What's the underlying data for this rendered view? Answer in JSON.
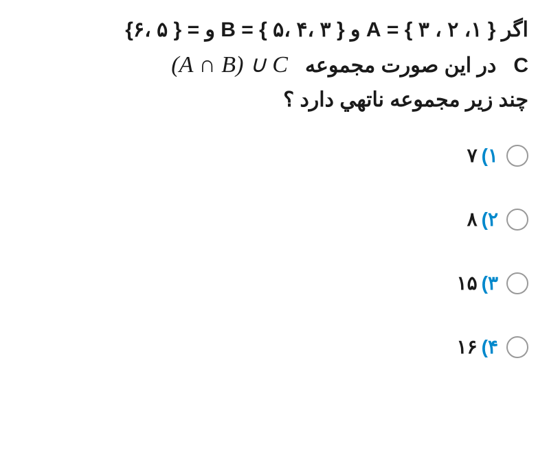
{
  "question": {
    "line1_prefix": "اگر",
    "setA_label": "A",
    "setA_value": "{ ۱، ۲ ، ۳ }",
    "and1": "و",
    "setB_label": "B",
    "setB_value": "{ ۳ ،۴ ،۵ }",
    "and2": "و",
    "setC_prefix": "= { ۵ ،۶}",
    "setC_label": "C",
    "line2_text": "در این صورت مجموعه",
    "math_expr": "(A ∩ B) ∪ C",
    "line3_text": "چند زیر مجموعه ناتهي دارد ؟"
  },
  "options": [
    {
      "num": "۱)",
      "value": "۷"
    },
    {
      "num": "۲)",
      "value": "۸"
    },
    {
      "num": "۳)",
      "value": "۱۵"
    },
    {
      "num": "۴)",
      "value": "۱۶"
    }
  ],
  "styling": {
    "option_number_color": "#0088cc",
    "text_color": "#1a1a1a",
    "radio_border_color": "#999999",
    "background": "#ffffff",
    "question_fontsize": 30,
    "option_fontsize": 28
  }
}
